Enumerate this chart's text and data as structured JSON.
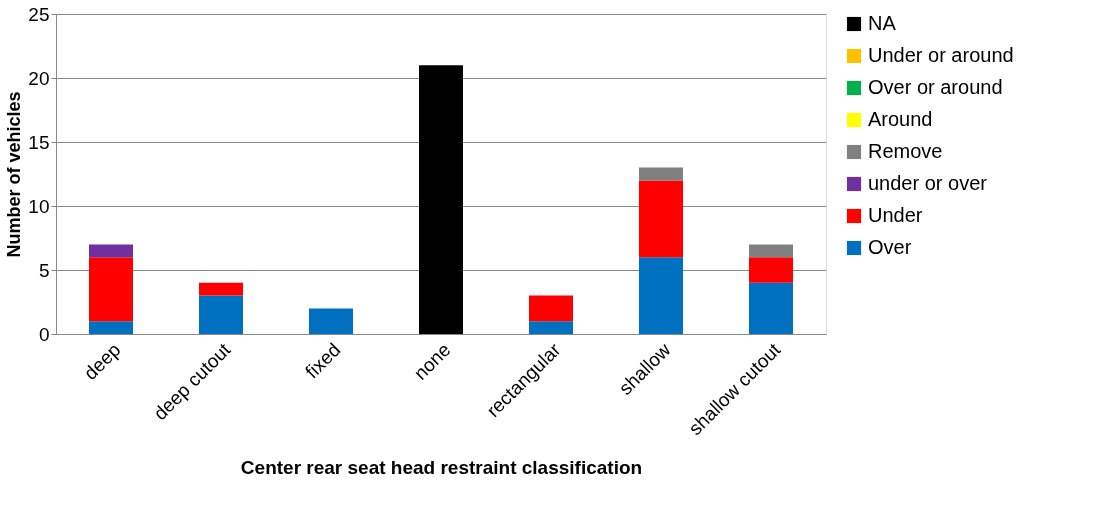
{
  "chart_data": {
    "type": "bar",
    "stacked": true,
    "xlabel": "Center rear seat head restraint classification",
    "ylabel": "Number of vehicles",
    "categories": [
      "deep",
      "deep cutout",
      "fixed",
      "none",
      "rectangular",
      "shallow",
      "shallow cutout"
    ],
    "series": [
      {
        "name": "Over",
        "color": "#0070c0",
        "values": [
          1,
          3,
          2,
          null,
          1,
          6,
          4
        ]
      },
      {
        "name": "Under",
        "color": "#ff0000",
        "values": [
          5,
          1,
          null,
          null,
          2,
          6,
          2
        ]
      },
      {
        "name": "under or over",
        "color": "#7030a0",
        "values": [
          1,
          null,
          null,
          null,
          null,
          null,
          null
        ]
      },
      {
        "name": "Remove",
        "color": "#808080",
        "values": [
          null,
          null,
          null,
          null,
          null,
          1,
          1
        ]
      },
      {
        "name": "Around",
        "color": "#ffff00",
        "values": [
          null,
          null,
          null,
          null,
          null,
          null,
          null
        ]
      },
      {
        "name": "Over or around",
        "color": "#00b050",
        "values": [
          null,
          null,
          null,
          null,
          null,
          null,
          null
        ]
      },
      {
        "name": "Under or around",
        "color": "#ffc000",
        "values": [
          null,
          null,
          null,
          null,
          null,
          null,
          null
        ]
      },
      {
        "name": "NA",
        "color": "#000000",
        "values": [
          null,
          null,
          null,
          21,
          null,
          null,
          null
        ]
      }
    ],
    "ylim": [
      0,
      25
    ],
    "yticks": [
      0,
      5,
      10,
      15,
      20,
      25
    ],
    "grid": "y",
    "legend": "right"
  }
}
